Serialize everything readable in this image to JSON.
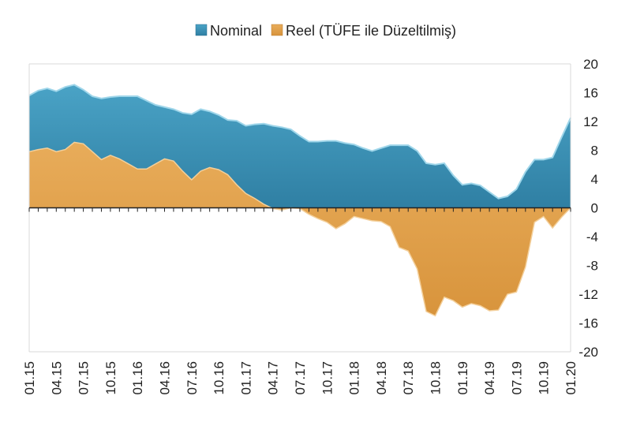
{
  "chart_data": {
    "type": "area",
    "title": "",
    "xlabel": "",
    "ylabel": "",
    "ylim": [
      -20,
      20
    ],
    "yticks": [
      20,
      16,
      12,
      8,
      4,
      0,
      -4,
      -8,
      -12,
      -16,
      -20
    ],
    "grid": false,
    "legend_placement": "top-center",
    "x_tick_labels": [
      "01.15",
      "04.15",
      "07.15",
      "10.15",
      "01.16",
      "04.16",
      "07.16",
      "10.16",
      "01.17",
      "04.17",
      "07.17",
      "10.17",
      "01.18",
      "04.18",
      "07.18",
      "10.18",
      "01.19",
      "04.19",
      "07.19",
      "10.19",
      "01.20"
    ],
    "x": [
      "01.15",
      "02.15",
      "03.15",
      "04.15",
      "05.15",
      "06.15",
      "07.15",
      "08.15",
      "09.15",
      "10.15",
      "11.15",
      "12.15",
      "01.16",
      "02.16",
      "03.16",
      "04.16",
      "05.16",
      "06.16",
      "07.16",
      "08.16",
      "09.16",
      "10.16",
      "11.16",
      "12.16",
      "01.17",
      "02.17",
      "03.17",
      "04.17",
      "05.17",
      "06.17",
      "07.17",
      "08.17",
      "09.17",
      "10.17",
      "11.17",
      "12.17",
      "01.18",
      "02.18",
      "03.18",
      "04.18",
      "05.18",
      "06.18",
      "07.18",
      "08.18",
      "09.18",
      "10.18",
      "11.18",
      "12.18",
      "01.19",
      "02.19",
      "03.19",
      "04.19",
      "05.19",
      "06.19",
      "07.19",
      "08.19",
      "09.19",
      "10.19",
      "11.19",
      "12.19",
      "01.20"
    ],
    "series": [
      {
        "name": "Nominal",
        "color": "#3a8db0",
        "values": [
          15.6,
          16.3,
          16.6,
          16.2,
          16.8,
          17.1,
          16.4,
          15.5,
          15.2,
          15.4,
          15.5,
          15.5,
          15.5,
          14.9,
          14.3,
          14.0,
          13.7,
          13.2,
          13.0,
          13.7,
          13.4,
          12.9,
          12.2,
          12.1,
          11.4,
          11.6,
          11.7,
          11.4,
          11.2,
          10.9,
          10.0,
          9.2,
          9.2,
          9.3,
          9.3,
          9.0,
          8.8,
          8.3,
          7.9,
          8.3,
          8.7,
          8.7,
          8.7,
          7.9,
          6.2,
          6.0,
          6.2,
          4.5,
          3.2,
          3.4,
          3.1,
          2.2,
          1.3,
          1.6,
          2.6,
          5.0,
          6.7,
          6.7,
          7.0,
          9.8,
          12.5
        ]
      },
      {
        "name": "Reel (TÜFE ile Düzeltilmiş)",
        "color": "#e0a050",
        "values": [
          7.8,
          8.1,
          8.3,
          7.8,
          8.1,
          9.1,
          8.9,
          7.8,
          6.7,
          7.3,
          6.8,
          6.1,
          5.4,
          5.4,
          6.1,
          6.8,
          6.5,
          5.1,
          3.9,
          5.1,
          5.6,
          5.3,
          4.6,
          3.2,
          2.0,
          1.3,
          0.5,
          -0.1,
          -0.3,
          0.0,
          -0.1,
          -0.9,
          -1.5,
          -2.0,
          -2.9,
          -2.2,
          -1.2,
          -1.5,
          -1.8,
          -1.9,
          -2.6,
          -5.5,
          -6.0,
          -8.5,
          -14.4,
          -15.0,
          -12.4,
          -12.9,
          -13.8,
          -13.3,
          -13.6,
          -14.3,
          -14.2,
          -12.0,
          -11.7,
          -8.2,
          -2.0,
          -1.2,
          -2.8,
          -1.3,
          0.0
        ]
      }
    ]
  }
}
